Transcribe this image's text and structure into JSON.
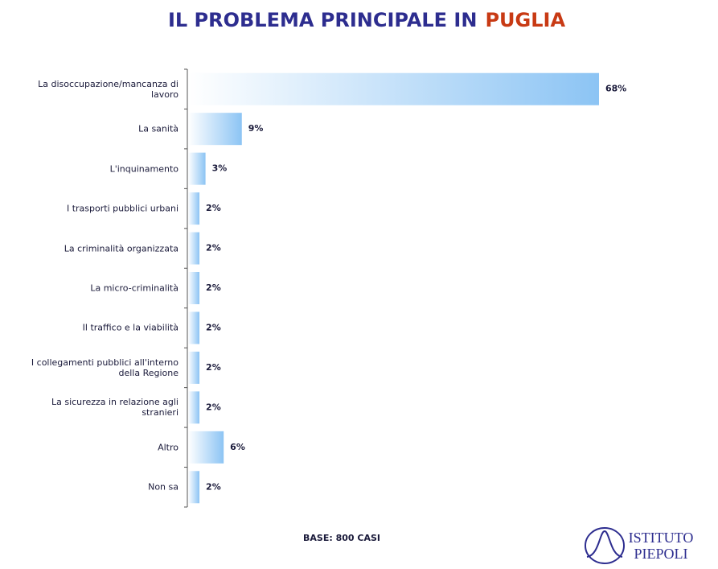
{
  "chart_data": {
    "type": "bar",
    "orientation": "horizontal",
    "title": "IL PROBLEMA PRINCIPALE IN",
    "title_highlight": "PUGLIA",
    "categories": [
      "La disoccupazione/mancanza di lavoro",
      "La sanità",
      "L'inquinamento",
      "I trasporti pubblici urbani",
      "La criminalità organizzata",
      "La micro-criminalità",
      "Il traffico e la viabilità",
      "I collegamenti pubblici all'interno della Regione",
      "La sicurezza in relazione agli stranieri",
      "Altro",
      "Non sa"
    ],
    "values": [
      68,
      9,
      3,
      2,
      2,
      2,
      2,
      2,
      2,
      6,
      2
    ],
    "value_labels": [
      "68%",
      "9%",
      "3%",
      "2%",
      "2%",
      "2%",
      "2%",
      "2%",
      "2%",
      "6%",
      "2%"
    ],
    "color": "#8cc4f4",
    "footnote": "BASE: 800 CASI"
  },
  "logo": {
    "line1": "ISTITUTO",
    "line2": "PIEPOLI"
  }
}
